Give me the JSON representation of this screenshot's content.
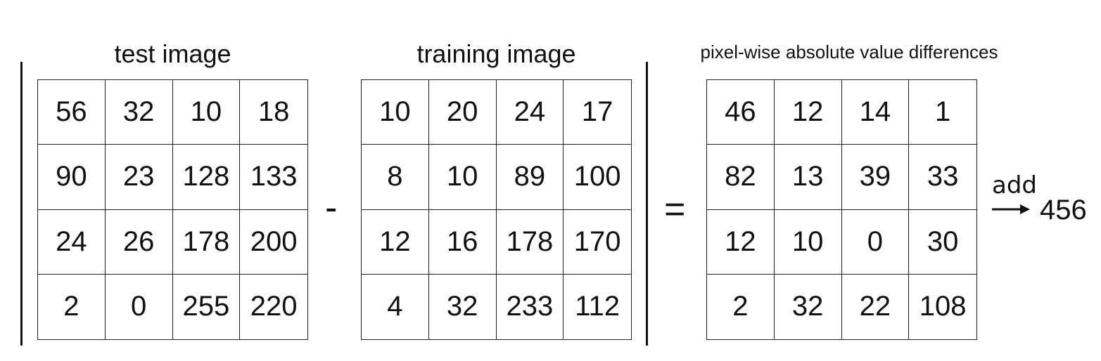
{
  "titles": {
    "test": "test image",
    "training": "training image",
    "diff": "pixel-wise absolute value differences"
  },
  "operators": {
    "minus": "-",
    "equals": "="
  },
  "test_image": [
    [
      56,
      32,
      10,
      18
    ],
    [
      90,
      23,
      128,
      133
    ],
    [
      24,
      26,
      178,
      200
    ],
    [
      2,
      0,
      255,
      220
    ]
  ],
  "training_image": [
    [
      10,
      20,
      24,
      17
    ],
    [
      8,
      10,
      89,
      100
    ],
    [
      12,
      16,
      178,
      170
    ],
    [
      4,
      32,
      233,
      112
    ]
  ],
  "differences": [
    [
      46,
      12,
      14,
      1
    ],
    [
      82,
      13,
      39,
      33
    ],
    [
      12,
      10,
      0,
      30
    ],
    [
      2,
      32,
      22,
      108
    ]
  ],
  "sum": {
    "label": "add",
    "value": "456"
  }
}
